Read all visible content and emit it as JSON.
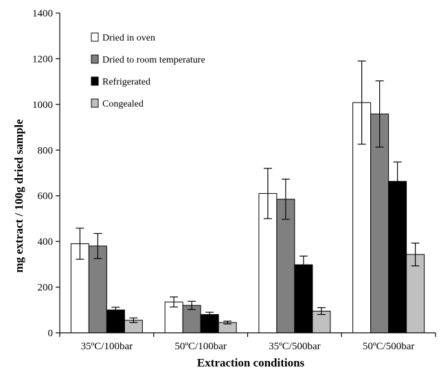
{
  "chart_data": {
    "type": "bar",
    "title": "",
    "xlabel": "Extraction conditions",
    "ylabel": "mg extract / 100g dried sample",
    "ylim": [
      0,
      1400
    ],
    "yticks": [
      0,
      200,
      400,
      600,
      800,
      1000,
      1200,
      1400
    ],
    "categories": [
      "35ºC/100bar",
      "50ºC/100bar",
      "35ºC/500bar",
      "50ºC/500bar"
    ],
    "grid": false,
    "legend_position": "top-left",
    "series": [
      {
        "name": "Dried in oven",
        "color": "#ffffff",
        "values": [
          390,
          135,
          610,
          1008
        ],
        "errors": [
          68,
          22,
          110,
          182
        ]
      },
      {
        "name": "Dried to room temperature",
        "color": "#808080",
        "values": [
          380,
          120,
          585,
          958
        ],
        "errors": [
          55,
          18,
          88,
          145
        ]
      },
      {
        "name": "Refrigerated",
        "color": "#000000",
        "values": [
          100,
          80,
          298,
          663
        ],
        "errors": [
          12,
          10,
          38,
          85
        ]
      },
      {
        "name": "Congealed",
        "color": "#c0c0c0",
        "values": [
          55,
          45,
          95,
          343
        ],
        "errors": [
          10,
          6,
          15,
          50
        ]
      }
    ]
  }
}
